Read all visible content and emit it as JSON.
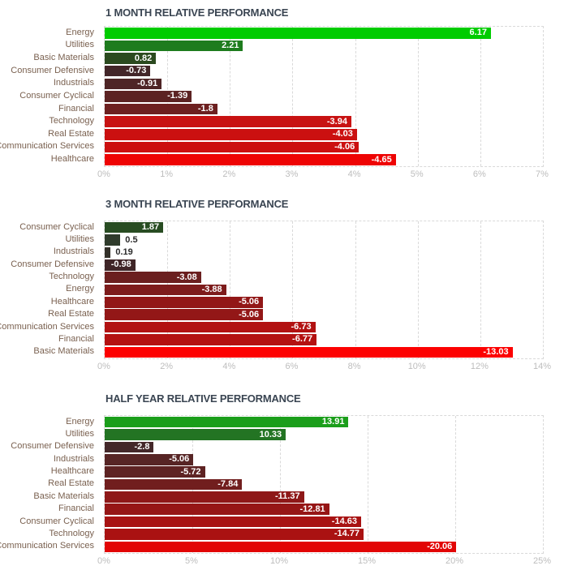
{
  "style": {
    "background": "#FFFFFF",
    "title_color": "#3A4552",
    "category_label_color": "#7A6150",
    "tick_label_color": "#BDBDBD",
    "grid_color": "#D9D9D9",
    "bar_label_inside_color": "#FFFFFF",
    "bar_label_outside_color": "#2B2B2B"
  },
  "chart_data": [
    {
      "type": "bar",
      "orientation": "horizontal",
      "title": "1 MONTH RELATIVE PERFORMANCE",
      "xlabel": "",
      "ylabel": "",
      "xlim": [
        0,
        7
      ],
      "grid": true,
      "legend": null,
      "note": "bar length equals absolute value of performance percent",
      "tick_labels": [
        "0%",
        "1%",
        "2%",
        "3%",
        "4%",
        "5%",
        "6%",
        "7%"
      ],
      "bars": [
        {
          "category": "Energy",
          "value": 6.17,
          "label": "6.17",
          "color": "#00CC00"
        },
        {
          "category": "Utilities",
          "value": 2.21,
          "label": "2.21",
          "color": "#1E7C1E"
        },
        {
          "category": "Basic Materials",
          "value": 0.82,
          "label": "0.82",
          "color": "#2B4A1F"
        },
        {
          "category": "Consumer Defensive",
          "value": -0.73,
          "label": "-0.73",
          "color": "#432629"
        },
        {
          "category": "Industrials",
          "value": -0.91,
          "label": "-0.91",
          "color": "#4E2526"
        },
        {
          "category": "Consumer Cyclical",
          "value": -1.39,
          "label": "-1.39",
          "color": "#5C2323"
        },
        {
          "category": "Financial",
          "value": -1.8,
          "label": "-1.8",
          "color": "#6D2020"
        },
        {
          "category": "Technology",
          "value": -3.94,
          "label": "-3.94",
          "color": "#C81212"
        },
        {
          "category": "Real Estate",
          "value": -4.03,
          "label": "-4.03",
          "color": "#CB1010"
        },
        {
          "category": "Communication Services",
          "value": -4.06,
          "label": "-4.06",
          "color": "#CC1010"
        },
        {
          "category": "Healthcare",
          "value": -4.65,
          "label": "-4.65",
          "color": "#EE0404"
        }
      ]
    },
    {
      "type": "bar",
      "orientation": "horizontal",
      "title": "3 MONTH RELATIVE PERFORMANCE",
      "xlabel": "",
      "ylabel": "",
      "xlim": [
        0,
        14
      ],
      "grid": true,
      "legend": null,
      "note": "bar length equals absolute value of performance percent",
      "tick_labels": [
        "0%",
        "2%",
        "4%",
        "6%",
        "8%",
        "10%",
        "12%",
        "14%"
      ],
      "bars": [
        {
          "category": "Consumer Cyclical",
          "value": 1.87,
          "label": "1.87",
          "color": "#284C22"
        },
        {
          "category": "Utilities",
          "value": 0.5,
          "label": "0.5",
          "color": "#2F3B2B"
        },
        {
          "category": "Industrials",
          "value": 0.19,
          "label": "0.19",
          "color": "#333029"
        },
        {
          "category": "Consumer Defensive",
          "value": -0.98,
          "label": "-0.98",
          "color": "#3F2527"
        },
        {
          "category": "Technology",
          "value": -3.08,
          "label": "-3.08",
          "color": "#6B1F1F"
        },
        {
          "category": "Energy",
          "value": -3.88,
          "label": "-3.88",
          "color": "#7E1C1C"
        },
        {
          "category": "Healthcare",
          "value": -5.06,
          "label": "-5.06",
          "color": "#921717"
        },
        {
          "category": "Real Estate",
          "value": -5.06,
          "label": "-5.06",
          "color": "#931717"
        },
        {
          "category": "Communication Services",
          "value": -6.73,
          "label": "-6.73",
          "color": "#B21212"
        },
        {
          "category": "Financial",
          "value": -6.77,
          "label": "-6.77",
          "color": "#B41111"
        },
        {
          "category": "Basic Materials",
          "value": -13.03,
          "label": "-13.03",
          "color": "#FC0101"
        }
      ]
    },
    {
      "type": "bar",
      "orientation": "horizontal",
      "title": "HALF YEAR RELATIVE PERFORMANCE",
      "xlabel": "",
      "ylabel": "",
      "xlim": [
        0,
        25
      ],
      "grid": true,
      "legend": null,
      "note": "bar length equals absolute value of performance percent",
      "tick_labels": [
        "0%",
        "5%",
        "10%",
        "15%",
        "20%",
        "25%"
      ],
      "bars": [
        {
          "category": "Energy",
          "value": 13.91,
          "label": "13.91",
          "color": "#1B9E1B"
        },
        {
          "category": "Utilities",
          "value": 10.33,
          "label": "10.33",
          "color": "#237423"
        },
        {
          "category": "Consumer Defensive",
          "value": -2.8,
          "label": "-2.8",
          "color": "#44282A"
        },
        {
          "category": "Industrials",
          "value": -5.06,
          "label": "-5.06",
          "color": "#572525"
        },
        {
          "category": "Healthcare",
          "value": -5.72,
          "label": "-5.72",
          "color": "#5E2323"
        },
        {
          "category": "Real Estate",
          "value": -7.84,
          "label": "-7.84",
          "color": "#711E1E"
        },
        {
          "category": "Basic Materials",
          "value": -11.37,
          "label": "-11.37",
          "color": "#8E1818"
        },
        {
          "category": "Financial",
          "value": -12.81,
          "label": "-12.81",
          "color": "#961616"
        },
        {
          "category": "Consumer Cyclical",
          "value": -14.63,
          "label": "-14.63",
          "color": "#A81313"
        },
        {
          "category": "Technology",
          "value": -14.77,
          "label": "-14.77",
          "color": "#AA1212"
        },
        {
          "category": "Communication Services",
          "value": -20.06,
          "label": "-20.06",
          "color": "#E20505"
        }
      ]
    }
  ]
}
